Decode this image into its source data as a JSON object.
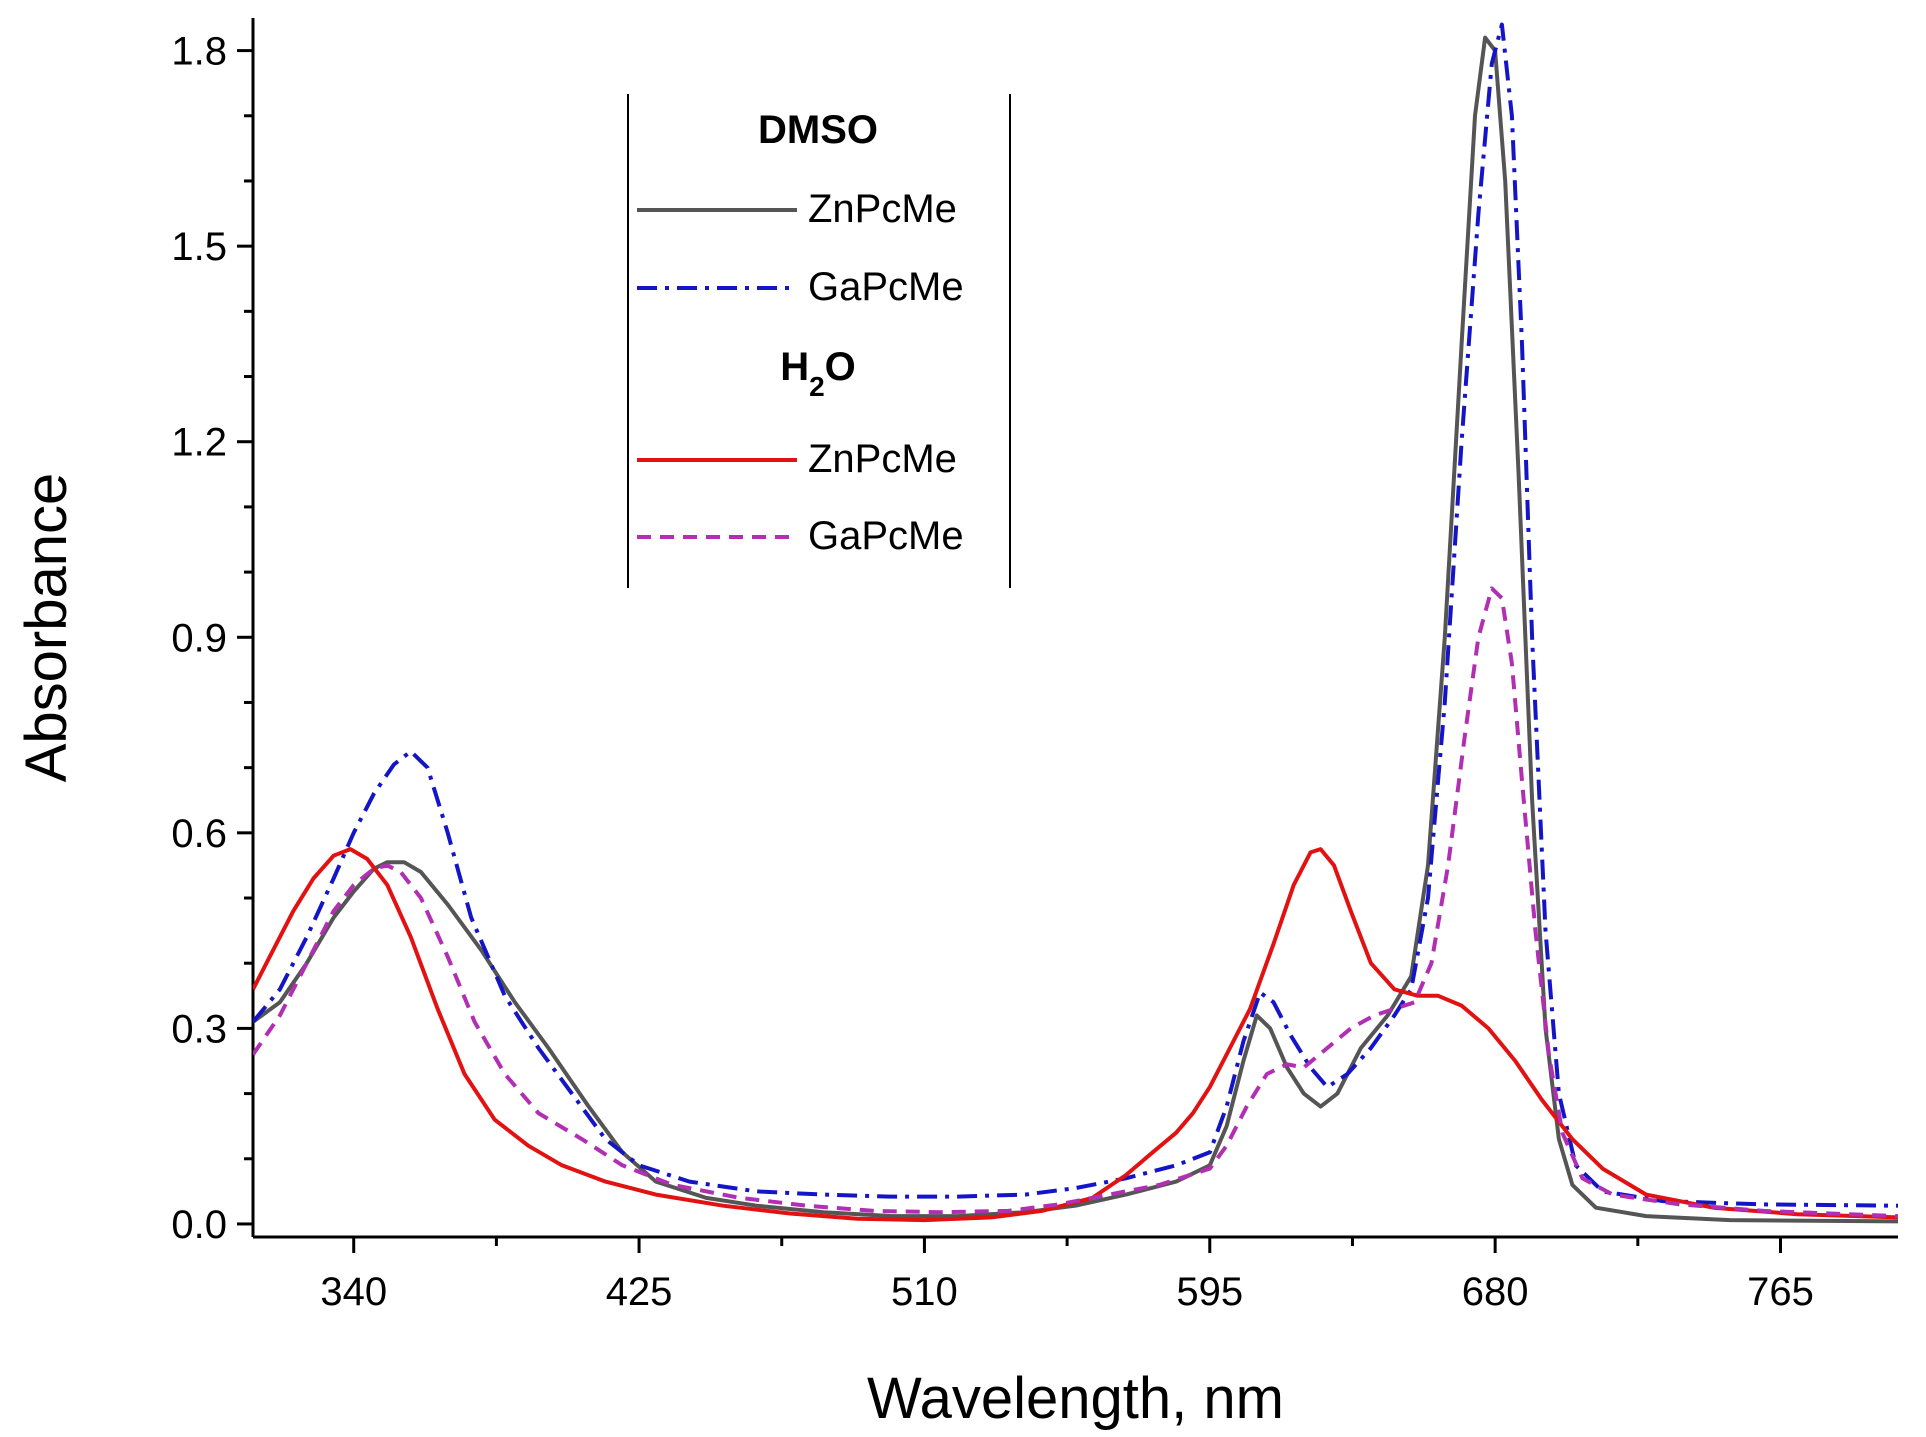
{
  "chart_data": {
    "type": "line",
    "title": "",
    "xlabel": "Wavelength, nm",
    "ylabel": "Absorbance",
    "xlim": [
      310,
      800
    ],
    "ylim": [
      -0.02,
      1.85
    ],
    "x_ticks": [
      340,
      425,
      510,
      595,
      680,
      765
    ],
    "y_ticks": [
      0.0,
      0.3,
      0.6,
      0.9,
      1.2,
      1.5,
      1.8
    ],
    "x_tick_labels": [
      "340",
      "425",
      "510",
      "595",
      "680",
      "765"
    ],
    "y_tick_labels": [
      "0.0",
      "0.3",
      "0.6",
      "0.9",
      "1.2",
      "1.5",
      "1.8"
    ],
    "grid": false,
    "legend": {
      "placement": "top-center",
      "groups": [
        {
          "heading_main": "DMSO",
          "heading_sub": "",
          "heading_tail": "",
          "entries": [
            0,
            1
          ]
        },
        {
          "heading_main": "H",
          "heading_sub": "2",
          "heading_tail": "O",
          "entries": [
            2,
            3
          ]
        }
      ]
    },
    "series": [
      {
        "name": "ZnPcMe",
        "solvent": "DMSO",
        "color": "#555555",
        "dash": "solid",
        "points": [
          [
            310,
            0.31
          ],
          [
            318,
            0.34
          ],
          [
            326,
            0.4
          ],
          [
            334,
            0.47
          ],
          [
            340,
            0.51
          ],
          [
            346,
            0.545
          ],
          [
            350,
            0.555
          ],
          [
            355,
            0.555
          ],
          [
            360,
            0.54
          ],
          [
            368,
            0.49
          ],
          [
            378,
            0.42
          ],
          [
            388,
            0.34
          ],
          [
            398,
            0.27
          ],
          [
            410,
            0.18
          ],
          [
            420,
            0.11
          ],
          [
            430,
            0.065
          ],
          [
            445,
            0.04
          ],
          [
            460,
            0.028
          ],
          [
            480,
            0.018
          ],
          [
            500,
            0.012
          ],
          [
            520,
            0.012
          ],
          [
            540,
            0.018
          ],
          [
            555,
            0.028
          ],
          [
            570,
            0.045
          ],
          [
            585,
            0.065
          ],
          [
            595,
            0.09
          ],
          [
            600,
            0.15
          ],
          [
            605,
            0.25
          ],
          [
            609,
            0.32
          ],
          [
            613,
            0.3
          ],
          [
            618,
            0.24
          ],
          [
            623,
            0.2
          ],
          [
            628,
            0.18
          ],
          [
            633,
            0.2
          ],
          [
            640,
            0.27
          ],
          [
            648,
            0.32
          ],
          [
            655,
            0.38
          ],
          [
            660,
            0.55
          ],
          [
            665,
            0.9
          ],
          [
            670,
            1.35
          ],
          [
            674,
            1.7
          ],
          [
            677,
            1.82
          ],
          [
            680,
            1.8
          ],
          [
            683,
            1.6
          ],
          [
            687,
            1.15
          ],
          [
            691,
            0.65
          ],
          [
            695,
            0.3
          ],
          [
            699,
            0.13
          ],
          [
            703,
            0.06
          ],
          [
            710,
            0.025
          ],
          [
            725,
            0.012
          ],
          [
            750,
            0.006
          ],
          [
            800,
            0.004
          ]
        ]
      },
      {
        "name": "GaPcMe",
        "solvent": "DMSO",
        "color": "#1515c8",
        "dash": "dashdot",
        "points": [
          [
            310,
            0.31
          ],
          [
            318,
            0.36
          ],
          [
            326,
            0.44
          ],
          [
            334,
            0.53
          ],
          [
            340,
            0.6
          ],
          [
            346,
            0.66
          ],
          [
            352,
            0.705
          ],
          [
            357,
            0.725
          ],
          [
            362,
            0.7
          ],
          [
            368,
            0.6
          ],
          [
            375,
            0.47
          ],
          [
            385,
            0.35
          ],
          [
            395,
            0.27
          ],
          [
            405,
            0.2
          ],
          [
            415,
            0.13
          ],
          [
            425,
            0.09
          ],
          [
            440,
            0.065
          ],
          [
            460,
            0.05
          ],
          [
            480,
            0.045
          ],
          [
            500,
            0.042
          ],
          [
            520,
            0.042
          ],
          [
            540,
            0.045
          ],
          [
            555,
            0.055
          ],
          [
            570,
            0.07
          ],
          [
            585,
            0.09
          ],
          [
            595,
            0.11
          ],
          [
            600,
            0.18
          ],
          [
            605,
            0.28
          ],
          [
            610,
            0.355
          ],
          [
            614,
            0.34
          ],
          [
            619,
            0.29
          ],
          [
            625,
            0.24
          ],
          [
            630,
            0.21
          ],
          [
            636,
            0.23
          ],
          [
            643,
            0.27
          ],
          [
            650,
            0.32
          ],
          [
            655,
            0.36
          ],
          [
            660,
            0.5
          ],
          [
            665,
            0.8
          ],
          [
            670,
            1.2
          ],
          [
            675,
            1.55
          ],
          [
            679,
            1.78
          ],
          [
            682,
            1.84
          ],
          [
            685,
            1.7
          ],
          [
            688,
            1.35
          ],
          [
            691,
            0.9
          ],
          [
            695,
            0.45
          ],
          [
            699,
            0.2
          ],
          [
            704,
            0.09
          ],
          [
            712,
            0.05
          ],
          [
            730,
            0.035
          ],
          [
            760,
            0.03
          ],
          [
            800,
            0.028
          ]
        ]
      },
      {
        "name": "ZnPcMe",
        "solvent": "H2O",
        "color": "#e31212",
        "dash": "solid",
        "points": [
          [
            310,
            0.36
          ],
          [
            316,
            0.42
          ],
          [
            322,
            0.48
          ],
          [
            328,
            0.53
          ],
          [
            334,
            0.565
          ],
          [
            339,
            0.575
          ],
          [
            344,
            0.56
          ],
          [
            350,
            0.52
          ],
          [
            357,
            0.44
          ],
          [
            365,
            0.33
          ],
          [
            373,
            0.23
          ],
          [
            382,
            0.16
          ],
          [
            392,
            0.12
          ],
          [
            402,
            0.09
          ],
          [
            415,
            0.065
          ],
          [
            430,
            0.045
          ],
          [
            450,
            0.028
          ],
          [
            470,
            0.016
          ],
          [
            490,
            0.008
          ],
          [
            510,
            0.006
          ],
          [
            530,
            0.01
          ],
          [
            545,
            0.02
          ],
          [
            560,
            0.04
          ],
          [
            570,
            0.075
          ],
          [
            578,
            0.11
          ],
          [
            585,
            0.14
          ],
          [
            590,
            0.17
          ],
          [
            595,
            0.21
          ],
          [
            600,
            0.26
          ],
          [
            607,
            0.33
          ],
          [
            614,
            0.43
          ],
          [
            620,
            0.52
          ],
          [
            625,
            0.57
          ],
          [
            628,
            0.575
          ],
          [
            632,
            0.55
          ],
          [
            637,
            0.48
          ],
          [
            643,
            0.4
          ],
          [
            650,
            0.36
          ],
          [
            657,
            0.35
          ],
          [
            663,
            0.35
          ],
          [
            670,
            0.335
          ],
          [
            678,
            0.3
          ],
          [
            686,
            0.25
          ],
          [
            694,
            0.19
          ],
          [
            703,
            0.13
          ],
          [
            712,
            0.085
          ],
          [
            725,
            0.045
          ],
          [
            745,
            0.025
          ],
          [
            770,
            0.015
          ],
          [
            800,
            0.01
          ]
        ]
      },
      {
        "name": "GaPcMe",
        "solvent": "H2O",
        "color": "#b22eb2",
        "dash": "dashed",
        "points": [
          [
            310,
            0.26
          ],
          [
            318,
            0.32
          ],
          [
            326,
            0.4
          ],
          [
            334,
            0.48
          ],
          [
            340,
            0.52
          ],
          [
            346,
            0.545
          ],
          [
            350,
            0.55
          ],
          [
            354,
            0.54
          ],
          [
            360,
            0.5
          ],
          [
            368,
            0.41
          ],
          [
            376,
            0.31
          ],
          [
            385,
            0.23
          ],
          [
            395,
            0.17
          ],
          [
            408,
            0.13
          ],
          [
            420,
            0.09
          ],
          [
            435,
            0.06
          ],
          [
            455,
            0.04
          ],
          [
            475,
            0.028
          ],
          [
            495,
            0.02
          ],
          [
            515,
            0.018
          ],
          [
            535,
            0.02
          ],
          [
            550,
            0.03
          ],
          [
            565,
            0.045
          ],
          [
            580,
            0.06
          ],
          [
            595,
            0.085
          ],
          [
            600,
            0.12
          ],
          [
            606,
            0.18
          ],
          [
            612,
            0.23
          ],
          [
            618,
            0.245
          ],
          [
            623,
            0.24
          ],
          [
            630,
            0.27
          ],
          [
            637,
            0.3
          ],
          [
            644,
            0.32
          ],
          [
            650,
            0.33
          ],
          [
            656,
            0.34
          ],
          [
            661,
            0.4
          ],
          [
            666,
            0.55
          ],
          [
            671,
            0.75
          ],
          [
            675,
            0.9
          ],
          [
            679,
            0.975
          ],
          [
            682,
            0.96
          ],
          [
            685,
            0.86
          ],
          [
            688,
            0.68
          ],
          [
            692,
            0.45
          ],
          [
            696,
            0.26
          ],
          [
            700,
            0.14
          ],
          [
            706,
            0.07
          ],
          [
            715,
            0.045
          ],
          [
            735,
            0.03
          ],
          [
            760,
            0.02
          ],
          [
            800,
            0.012
          ]
        ]
      }
    ]
  }
}
